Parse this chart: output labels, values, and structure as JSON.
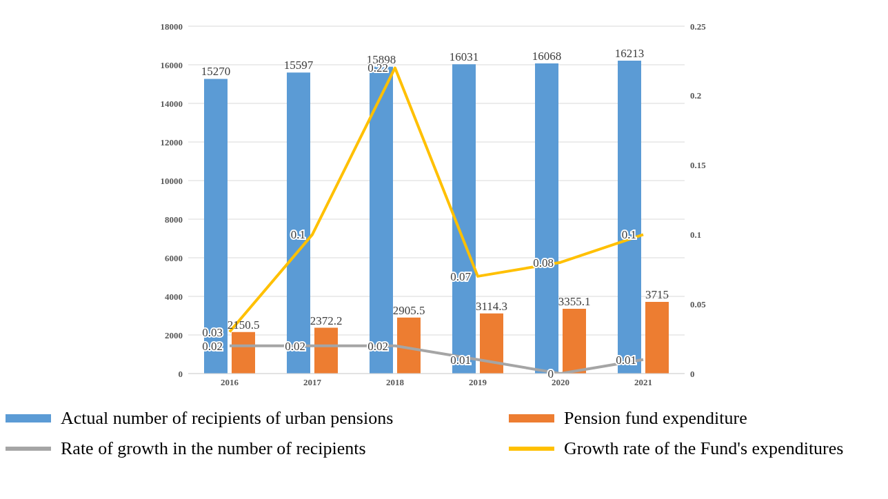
{
  "chart_data": {
    "type": "bar",
    "categories": [
      "2016",
      "2017",
      "2018",
      "2019",
      "2020",
      "2021"
    ],
    "series": [
      {
        "name": "Actual number of recipients of urban pensions",
        "color": "#5b9bd5",
        "values": [
          15270,
          15597,
          15898,
          16031,
          16068,
          16213
        ]
      },
      {
        "name": "Pension fund expenditure",
        "color": "#ed7d31",
        "values": [
          2150.5,
          2372.2,
          2905.5,
          3114.3,
          3355.1,
          3715
        ]
      },
      {
        "name": "Rate of growth in the number of recipients",
        "type": "line",
        "axis": "y2",
        "color": "#a5a5a5",
        "values": [
          0.02,
          0.02,
          0.02,
          0.01,
          0,
          0.01
        ]
      },
      {
        "name": "Growth rate of the Fund's expenditures",
        "type": "line",
        "axis": "y2",
        "color": "#ffc000",
        "values": [
          0.03,
          0.1,
          0.22,
          0.07,
          0.08,
          0.1
        ]
      }
    ],
    "ylim": [
      0,
      18000
    ],
    "yticks": [
      0,
      2000,
      4000,
      6000,
      8000,
      10000,
      12000,
      14000,
      16000,
      18000
    ],
    "y2lim": [
      0,
      0.25
    ],
    "y2ticks": [
      0,
      0.05,
      0.1,
      0.15,
      0.2,
      0.25
    ],
    "grid": "y",
    "legend": "bottom",
    "data_labels": true,
    "marker": "none"
  }
}
